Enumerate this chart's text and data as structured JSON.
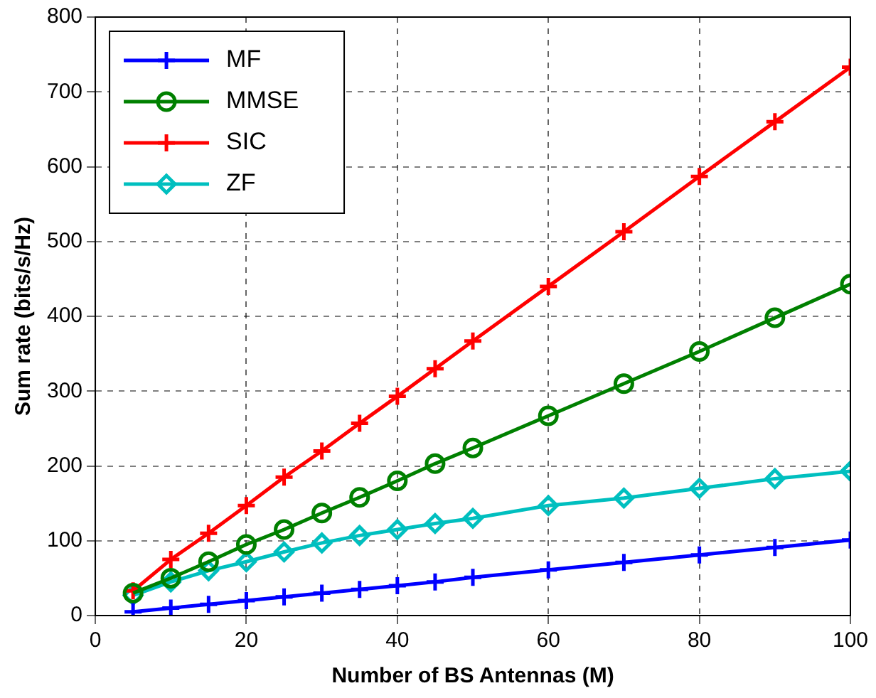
{
  "chart_data": {
    "type": "line",
    "xlabel": "Number of BS Antennas (M)",
    "ylabel": "Sum rate (bits/s/Hz)",
    "x": [
      5,
      10,
      15,
      20,
      25,
      30,
      35,
      40,
      45,
      50,
      60,
      70,
      80,
      90,
      100
    ],
    "series": [
      {
        "name": "MF",
        "color": "#0000ff",
        "marker": "cross",
        "values": [
          5,
          10,
          15,
          20,
          25,
          30,
          35,
          40,
          45,
          51,
          61,
          71,
          81,
          91,
          101
        ]
      },
      {
        "name": "MMSE",
        "color": "#008000",
        "marker": "circle",
        "values": [
          30,
          50,
          72,
          95,
          115,
          137,
          158,
          180,
          203,
          224,
          267,
          310,
          353,
          398,
          443
        ]
      },
      {
        "name": "SIC",
        "color": "#ff0000",
        "marker": "cross",
        "values": [
          33,
          75,
          110,
          147,
          185,
          220,
          257,
          293,
          330,
          367,
          440,
          513,
          587,
          660,
          733
        ]
      },
      {
        "name": "ZF",
        "color": "#00bfbf",
        "marker": "diamond",
        "values": [
          27,
          45,
          60,
          72,
          85,
          97,
          107,
          115,
          123,
          130,
          147,
          157,
          170,
          183,
          193
        ]
      }
    ],
    "xlim": [
      0,
      100
    ],
    "xticks": [
      0,
      20,
      40,
      60,
      80,
      100
    ],
    "ylim": [
      0,
      800
    ],
    "yticks": [
      0,
      100,
      200,
      300,
      400,
      500,
      600,
      700,
      800
    ],
    "grid": true,
    "legend": "top left",
    "line_style": "solid"
  }
}
